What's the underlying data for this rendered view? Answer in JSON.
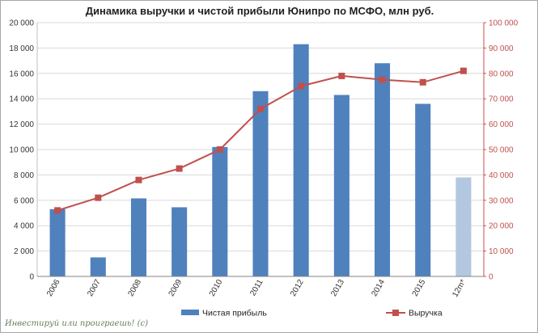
{
  "chart_data": {
    "type": "bar",
    "title": "Динамика выручки и чистой прибыли Юнипро по МСФО, млн руб.",
    "categories": [
      "2006",
      "2007",
      "2008",
      "2009",
      "2010",
      "2011",
      "2012",
      "2013",
      "2014",
      "2015",
      "12m*"
    ],
    "y_left_ticks": [
      "0",
      "2 000",
      "4 000",
      "6 000",
      "8 000",
      "10 000",
      "12 000",
      "14 000",
      "16 000",
      "18 000",
      "20 000"
    ],
    "y_right_ticks": [
      "0",
      "10 000",
      "20 000",
      "30 000",
      "40 000",
      "50 000",
      "60 000",
      "70 000",
      "80 000",
      "90 000",
      "100 000"
    ],
    "ylim_left": [
      0,
      20000
    ],
    "ylim_right": [
      0,
      100000
    ],
    "grid": true,
    "legend_position": "bottom",
    "series": [
      {
        "name": "Чистая прибыль",
        "type": "bar",
        "axis": "left",
        "color": "#4f81bd",
        "highlight_color": "#b3c7e0",
        "highlight_index": 10,
        "values": [
          5300,
          1500,
          6150,
          5450,
          10200,
          14600,
          18300,
          14300,
          16800,
          13600,
          7800
        ]
      },
      {
        "name": "Выручка",
        "type": "line",
        "axis": "right",
        "color": "#c0504d",
        "values": [
          26000,
          31000,
          38000,
          42500,
          50000,
          66000,
          75000,
          79000,
          77500,
          76500,
          81000
        ]
      }
    ]
  },
  "watermark": "Инвестируй или проиграешь! (с)"
}
